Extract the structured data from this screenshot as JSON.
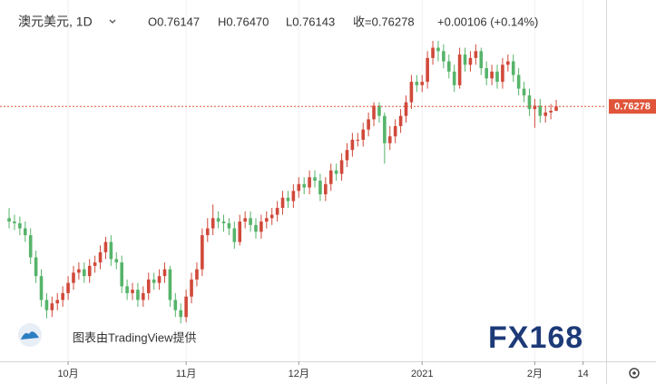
{
  "chart_data": {
    "type": "candlestick",
    "header": {
      "symbol": "澳元美元, 1D",
      "items": [
        "O0.76147",
        "H0.76470",
        "L0.76143",
        "收=0.76278",
        "+0.00106 (+0.14%)"
      ]
    },
    "watermark": "图表由TradingView提供",
    "logo": "FX168",
    "last_price": 0.76278,
    "up_color": "#d0493a",
    "down_color": "#56b46a",
    "price_line_color": "#e0553a",
    "ylim": [
      0.688,
      0.794
    ],
    "xlim": [
      -1.7,
      111.3
    ],
    "grid": "x",
    "xticks": [
      {
        "value": 11,
        "label": "10月"
      },
      {
        "value": 33,
        "label": "11月"
      },
      {
        "value": 54,
        "label": "12月"
      },
      {
        "value": 77,
        "label": "2021"
      },
      {
        "value": 98,
        "label": "2月"
      },
      {
        "value": 107,
        "label": "14"
      }
    ],
    "candles": [
      [
        0.73,
        0.733,
        0.727,
        0.729
      ],
      [
        0.729,
        0.731,
        0.7265,
        0.7285
      ],
      [
        0.7285,
        0.7305,
        0.725,
        0.727
      ],
      [
        0.727,
        0.729,
        0.723,
        0.725
      ],
      [
        0.725,
        0.727,
        0.7165,
        0.7185
      ],
      [
        0.7185,
        0.7205,
        0.711,
        0.713
      ],
      [
        0.713,
        0.715,
        0.704,
        0.706
      ],
      [
        0.706,
        0.708,
        0.7006,
        0.703
      ],
      [
        0.703,
        0.707,
        0.701,
        0.705
      ],
      [
        0.705,
        0.708,
        0.703,
        0.706
      ],
      [
        0.706,
        0.71,
        0.704,
        0.708
      ],
      [
        0.708,
        0.713,
        0.706,
        0.711
      ],
      [
        0.711,
        0.716,
        0.709,
        0.714
      ],
      [
        0.714,
        0.717,
        0.712,
        0.715
      ],
      [
        0.715,
        0.717,
        0.711,
        0.713
      ],
      [
        0.713,
        0.718,
        0.711,
        0.716
      ],
      [
        0.716,
        0.719,
        0.714,
        0.717
      ],
      [
        0.717,
        0.722,
        0.715,
        0.72
      ],
      [
        0.72,
        0.7245,
        0.718,
        0.723
      ],
      [
        0.723,
        0.725,
        0.716,
        0.718
      ],
      [
        0.718,
        0.72,
        0.715,
        0.717
      ],
      [
        0.717,
        0.719,
        0.708,
        0.71
      ],
      [
        0.71,
        0.712,
        0.706,
        0.708
      ],
      [
        0.708,
        0.711,
        0.706,
        0.709
      ],
      [
        0.709,
        0.711,
        0.704,
        0.706
      ],
      [
        0.706,
        0.71,
        0.704,
        0.708
      ],
      [
        0.708,
        0.714,
        0.706,
        0.712
      ],
      [
        0.712,
        0.714,
        0.709,
        0.711
      ],
      [
        0.711,
        0.715,
        0.709,
        0.713
      ],
      [
        0.713,
        0.717,
        0.711,
        0.715
      ],
      [
        0.715,
        0.716,
        0.704,
        0.706
      ],
      [
        0.706,
        0.708,
        0.701,
        0.703
      ],
      [
        0.703,
        0.705,
        0.6991,
        0.701
      ],
      [
        0.701,
        0.709,
        0.6995,
        0.707
      ],
      [
        0.707,
        0.714,
        0.705,
        0.712
      ],
      [
        0.712,
        0.717,
        0.71,
        0.715
      ],
      [
        0.715,
        0.727,
        0.713,
        0.725
      ],
      [
        0.725,
        0.73,
        0.723,
        0.727
      ],
      [
        0.727,
        0.734,
        0.725,
        0.73
      ],
      [
        0.73,
        0.732,
        0.727,
        0.729
      ],
      [
        0.729,
        0.731,
        0.726,
        0.7285
      ],
      [
        0.7285,
        0.73,
        0.725,
        0.727
      ],
      [
        0.727,
        0.729,
        0.721,
        0.723
      ],
      [
        0.723,
        0.731,
        0.722,
        0.729
      ],
      [
        0.729,
        0.732,
        0.727,
        0.73
      ],
      [
        0.73,
        0.732,
        0.726,
        0.728
      ],
      [
        0.728,
        0.73,
        0.724,
        0.726
      ],
      [
        0.726,
        0.731,
        0.724,
        0.729
      ],
      [
        0.729,
        0.732,
        0.727,
        0.73
      ],
      [
        0.73,
        0.733,
        0.728,
        0.731
      ],
      [
        0.731,
        0.735,
        0.729,
        0.733
      ],
      [
        0.733,
        0.738,
        0.731,
        0.736
      ],
      [
        0.736,
        0.738,
        0.733,
        0.735
      ],
      [
        0.735,
        0.74,
        0.733,
        0.738
      ],
      [
        0.738,
        0.742,
        0.736,
        0.74
      ],
      [
        0.74,
        0.742,
        0.737,
        0.739
      ],
      [
        0.739,
        0.744,
        0.737,
        0.742
      ],
      [
        0.742,
        0.744,
        0.739,
        0.741
      ],
      [
        0.741,
        0.743,
        0.735,
        0.737
      ],
      [
        0.737,
        0.742,
        0.735,
        0.74
      ],
      [
        0.74,
        0.746,
        0.738,
        0.744
      ],
      [
        0.744,
        0.746,
        0.741,
        0.743
      ],
      [
        0.743,
        0.749,
        0.741,
        0.747
      ],
      [
        0.747,
        0.752,
        0.745,
        0.75
      ],
      [
        0.75,
        0.755,
        0.748,
        0.753
      ],
      [
        0.753,
        0.755,
        0.751,
        0.753
      ],
      [
        0.753,
        0.758,
        0.751,
        0.756
      ],
      [
        0.756,
        0.761,
        0.754,
        0.759
      ],
      [
        0.759,
        0.764,
        0.757,
        0.763
      ],
      [
        0.763,
        0.764,
        0.758,
        0.76
      ],
      [
        0.76,
        0.761,
        0.746,
        0.752
      ],
      [
        0.752,
        0.757,
        0.75,
        0.754
      ],
      [
        0.754,
        0.759,
        0.752,
        0.757
      ],
      [
        0.757,
        0.762,
        0.755,
        0.76
      ],
      [
        0.76,
        0.766,
        0.758,
        0.764
      ],
      [
        0.764,
        0.772,
        0.762,
        0.77
      ],
      [
        0.77,
        0.772,
        0.767,
        0.769
      ],
      [
        0.769,
        0.772,
        0.767,
        0.77
      ],
      [
        0.77,
        0.779,
        0.768,
        0.777
      ],
      [
        0.777,
        0.782,
        0.775,
        0.78
      ],
      [
        0.78,
        0.782,
        0.776,
        0.779
      ],
      [
        0.779,
        0.781,
        0.774,
        0.776
      ],
      [
        0.776,
        0.778,
        0.771,
        0.773
      ],
      [
        0.773,
        0.775,
        0.767,
        0.769
      ],
      [
        0.769,
        0.78,
        0.768,
        0.778
      ],
      [
        0.778,
        0.78,
        0.773,
        0.775
      ],
      [
        0.775,
        0.779,
        0.773,
        0.777
      ],
      [
        0.777,
        0.781,
        0.775,
        0.779
      ],
      [
        0.779,
        0.78,
        0.772,
        0.774
      ],
      [
        0.774,
        0.776,
        0.769,
        0.771
      ],
      [
        0.771,
        0.775,
        0.769,
        0.773
      ],
      [
        0.773,
        0.775,
        0.768,
        0.77
      ],
      [
        0.77,
        0.777,
        0.768,
        0.775
      ],
      [
        0.775,
        0.778,
        0.773,
        0.776
      ],
      [
        0.776,
        0.778,
        0.77,
        0.772
      ],
      [
        0.772,
        0.774,
        0.766,
        0.768
      ],
      [
        0.768,
        0.77,
        0.764,
        0.766
      ],
      [
        0.766,
        0.768,
        0.76,
        0.762
      ],
      [
        0.762,
        0.765,
        0.7565,
        0.763
      ],
      [
        0.763,
        0.765,
        0.758,
        0.76
      ],
      [
        0.76,
        0.763,
        0.758,
        0.761
      ],
      [
        0.761,
        0.7635,
        0.759,
        0.7615
      ],
      [
        0.76147,
        0.7647,
        0.76143,
        0.76278
      ]
    ]
  }
}
